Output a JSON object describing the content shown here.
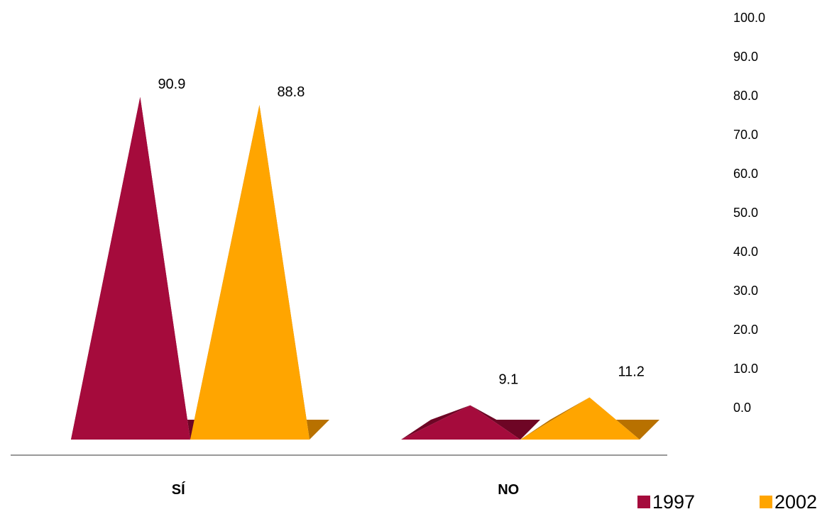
{
  "chart_data": {
    "type": "bar",
    "shape": "3d-pyramid",
    "categories": [
      "SÍ",
      "NO"
    ],
    "series": [
      {
        "name": "1997",
        "values": [
          90.9,
          9.1
        ],
        "color": "#A50B3C",
        "shade": "#6E0525"
      },
      {
        "name": "2002",
        "values": [
          88.8,
          11.2
        ],
        "color": "#FFA500",
        "shade": "#B87100"
      }
    ],
    "data_labels": [
      [
        "90.9",
        "9.1"
      ],
      [
        "88.8",
        "11.2"
      ]
    ],
    "y_ticks": [
      "0.0",
      "10.0",
      "20.0",
      "30.0",
      "40.0",
      "50.0",
      "60.0",
      "70.0",
      "80.0",
      "90.0",
      "100.0"
    ],
    "ylim": [
      0,
      100
    ],
    "y_axis_position": "right",
    "grid": false,
    "legend_position": "bottom-right",
    "title": "",
    "xlabel": "",
    "ylabel": ""
  }
}
